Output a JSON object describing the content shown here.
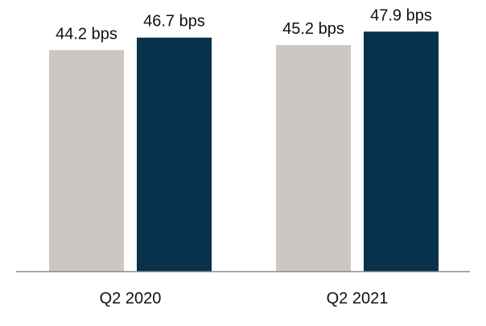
{
  "chart_data": {
    "type": "bar",
    "title": "",
    "xlabel": "",
    "ylabel": "",
    "categories": [
      "Q2 2020",
      "Q2 2021"
    ],
    "series": [
      {
        "values": [
          44.2,
          45.2
        ],
        "labels": [
          "44.2 bps",
          "45.2 bps"
        ],
        "color": "#cbc8c3"
      },
      {
        "values": [
          46.7,
          47.9
        ],
        "labels": [
          "46.7 bps",
          "47.9 bps"
        ],
        "color": "#08314b"
      }
    ],
    "ylim": [
      0,
      51
    ],
    "grid": false,
    "legend": "none",
    "axis_color": "#8c8c8c"
  }
}
